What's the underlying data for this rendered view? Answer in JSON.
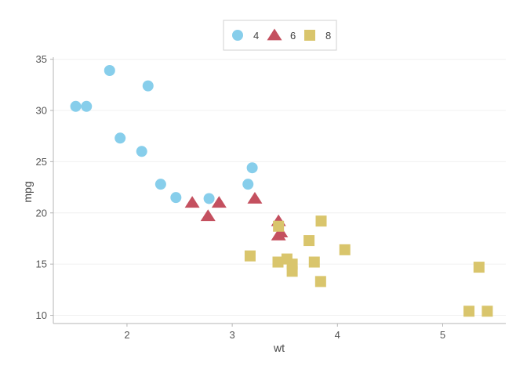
{
  "chart_data": {
    "type": "scatter",
    "xlabel": "wt",
    "ylabel": "mpg",
    "xlim": [
      1.3,
      5.6
    ],
    "ylim": [
      9.2,
      35.2
    ],
    "x_ticks": [
      2,
      3,
      4,
      5
    ],
    "y_ticks": [
      10,
      15,
      20,
      25,
      30,
      35
    ],
    "grid": "horizontal-faint",
    "legend_position": "top",
    "series": [
      {
        "name": "4",
        "marker": "circle",
        "color": "#87CEEB",
        "points": [
          [
            1.513,
            30.4
          ],
          [
            1.615,
            30.4
          ],
          [
            1.835,
            33.9
          ],
          [
            1.935,
            27.3
          ],
          [
            2.14,
            26.0
          ],
          [
            2.2,
            32.4
          ],
          [
            2.32,
            22.8
          ],
          [
            2.465,
            21.5
          ],
          [
            2.78,
            21.4
          ],
          [
            3.15,
            22.8
          ],
          [
            3.19,
            24.4
          ]
        ]
      },
      {
        "name": "6",
        "marker": "triangle",
        "color": "#C4505F",
        "points": [
          [
            2.62,
            21.0
          ],
          [
            2.77,
            19.7
          ],
          [
            2.875,
            21.0
          ],
          [
            3.215,
            21.4
          ],
          [
            3.44,
            19.2
          ],
          [
            3.44,
            17.8
          ],
          [
            3.46,
            18.1
          ]
        ]
      },
      {
        "name": "8",
        "marker": "square",
        "color": "#D9C56C",
        "points": [
          [
            3.17,
            15.8
          ],
          [
            3.435,
            15.2
          ],
          [
            3.44,
            18.7
          ],
          [
            3.52,
            15.5
          ],
          [
            3.57,
            14.3
          ],
          [
            3.57,
            15.0
          ],
          [
            3.73,
            17.3
          ],
          [
            3.78,
            15.2
          ],
          [
            3.84,
            13.3
          ],
          [
            3.845,
            19.2
          ],
          [
            4.07,
            16.4
          ],
          [
            5.25,
            10.4
          ],
          [
            5.345,
            14.7
          ],
          [
            5.424,
            10.4
          ]
        ]
      }
    ]
  }
}
